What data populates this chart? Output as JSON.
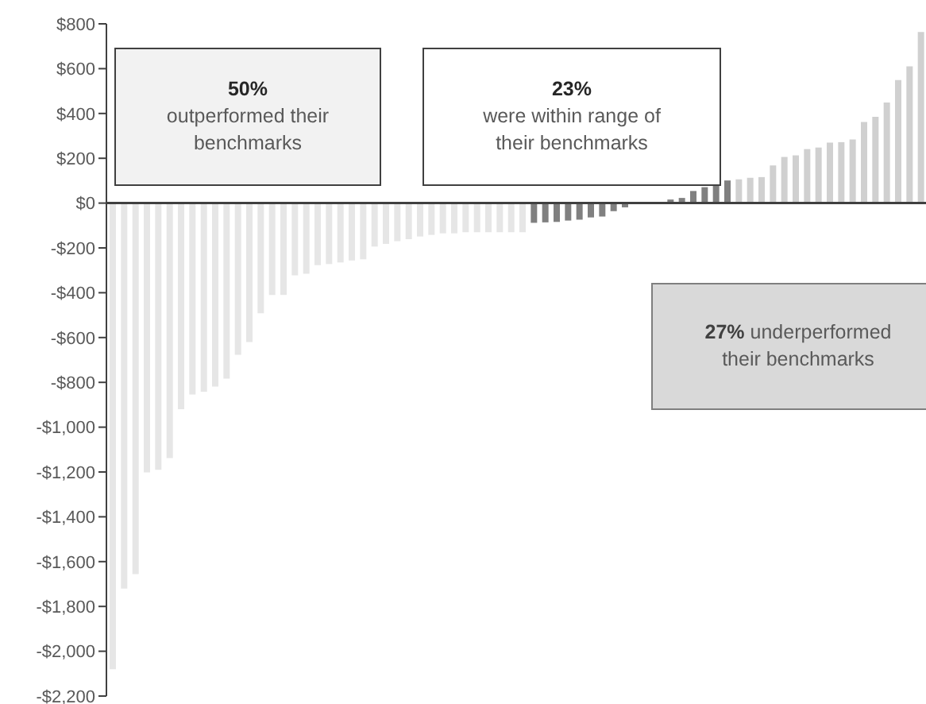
{
  "chart_data": {
    "type": "bar",
    "categories": [
      null,
      null,
      null,
      null,
      null,
      null,
      null,
      null,
      null,
      null,
      null,
      null,
      null,
      null,
      null,
      null,
      null,
      null,
      null,
      null,
      null,
      null,
      null,
      null,
      null,
      null,
      null,
      null,
      null,
      null,
      null,
      null,
      null,
      null,
      null,
      null,
      null,
      null,
      null,
      null,
      null,
      null,
      null,
      null,
      null,
      null,
      null,
      null,
      null,
      null,
      null,
      null,
      null,
      null,
      null,
      null,
      null,
      null,
      null,
      null,
      null,
      null,
      null,
      null,
      null,
      null,
      null,
      null,
      null,
      null,
      null,
      null
    ],
    "values": [
      -2080,
      -1720,
      -1656,
      -1202,
      -1190,
      -1138,
      -920,
      -854,
      -842,
      -819,
      -783,
      -677,
      -620,
      -492,
      -410,
      -410,
      -322,
      -315,
      -277,
      -272,
      -265,
      -256,
      -251,
      -194,
      -182,
      -170,
      -161,
      -149,
      -142,
      -135,
      -135,
      -130,
      -130,
      -130,
      -130,
      -130,
      -130,
      -88,
      -86,
      -84,
      -78,
      -74,
      -64,
      -60,
      -36,
      -19,
      0,
      0,
      0,
      16,
      23,
      54,
      71,
      87,
      101,
      106,
      113,
      116,
      168,
      206,
      213,
      241,
      248,
      270,
      272,
      284,
      362,
      385,
      449,
      549,
      610,
      764
    ],
    "colors": [
      "#e6e6e6",
      "#e6e6e6",
      "#e6e6e6",
      "#e6e6e6",
      "#e6e6e6",
      "#e6e6e6",
      "#e6e6e6",
      "#e6e6e6",
      "#e6e6e6",
      "#e6e6e6",
      "#e6e6e6",
      "#e6e6e6",
      "#e6e6e6",
      "#e6e6e6",
      "#e6e6e6",
      "#e6e6e6",
      "#e6e6e6",
      "#e6e6e6",
      "#e6e6e6",
      "#e6e6e6",
      "#e6e6e6",
      "#e6e6e6",
      "#e6e6e6",
      "#e6e6e6",
      "#e6e6e6",
      "#e6e6e6",
      "#e6e6e6",
      "#e6e6e6",
      "#e6e6e6",
      "#e6e6e6",
      "#e6e6e6",
      "#e6e6e6",
      "#e6e6e6",
      "#e6e6e6",
      "#e6e6e6",
      "#e6e6e6",
      "#e6e6e6",
      "#808080",
      "#808080",
      "#808080",
      "#808080",
      "#808080",
      "#808080",
      "#808080",
      "#808080",
      "#808080",
      "#808080",
      "#808080",
      "#808080",
      "#808080",
      "#808080",
      "#808080",
      "#808080",
      "#808080",
      "#808080",
      "#d0d0d0",
      "#d0d0d0",
      "#d0d0d0",
      "#d0d0d0",
      "#d0d0d0",
      "#d0d0d0",
      "#d0d0d0",
      "#d0d0d0",
      "#d0d0d0",
      "#d0d0d0",
      "#d0d0d0",
      "#d0d0d0",
      "#d0d0d0",
      "#d0d0d0",
      "#d0d0d0",
      "#d0d0d0",
      "#d0d0d0"
    ],
    "ylim": [
      -2200,
      800
    ],
    "yticks": [
      {
        "value": 800,
        "label": "$800"
      },
      {
        "value": 600,
        "label": "$600"
      },
      {
        "value": 400,
        "label": "$400"
      },
      {
        "value": 200,
        "label": "$200"
      },
      {
        "value": 0,
        "label": "$0"
      },
      {
        "value": -200,
        "label": "-$200"
      },
      {
        "value": -400,
        "label": "-$400"
      },
      {
        "value": -600,
        "label": "-$600"
      },
      {
        "value": -800,
        "label": "-$800"
      },
      {
        "value": -1000,
        "label": "-$1,000"
      },
      {
        "value": -1200,
        "label": "-$1,200"
      },
      {
        "value": -1400,
        "label": "-$1,400"
      },
      {
        "value": -1600,
        "label": "-$1,600"
      },
      {
        "value": -1800,
        "label": "-$1,800"
      },
      {
        "value": -2000,
        "label": "-$2,000"
      },
      {
        "value": -2200,
        "label": "-$2,200"
      }
    ],
    "tick_labels": "y",
    "annotations": [
      "50% outperformed their benchmarks",
      "23% were within range of their benchmarks",
      "27% underperformed their benchmarks"
    ]
  }
}
